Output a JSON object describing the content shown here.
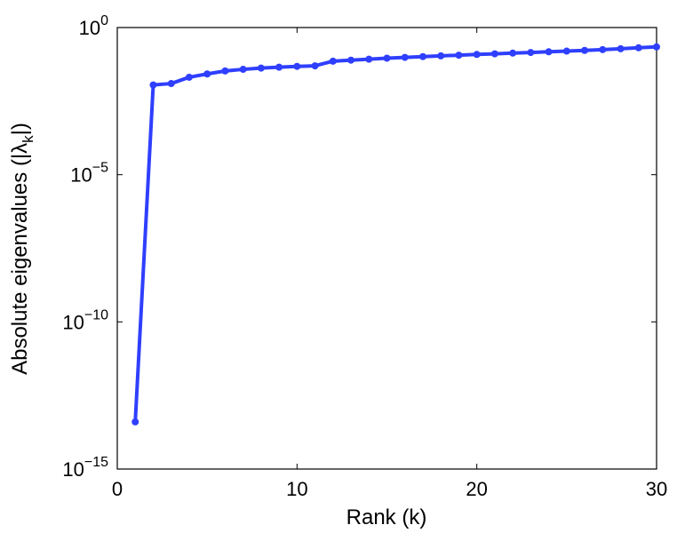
{
  "chart_data": {
    "type": "line",
    "xlabel": "Rank (k)",
    "ylabel_main": "Absolute eigenvalues (|λ",
    "ylabel_sub": "k",
    "ylabel_end": "|)",
    "xlim": [
      0,
      30
    ],
    "ylim_log10": [
      -15,
      0
    ],
    "yscale": "log",
    "grid": false,
    "x_ticks": [
      {
        "value": 0,
        "label": "0"
      },
      {
        "value": 10,
        "label": "10"
      },
      {
        "value": 20,
        "label": "20"
      },
      {
        "value": 30,
        "label": "30"
      }
    ],
    "y_ticks": [
      {
        "exp": 0,
        "base": "10",
        "sup": "0"
      },
      {
        "exp": -5,
        "base": "10",
        "sup": "−5"
      },
      {
        "exp": -10,
        "base": "10",
        "sup": "−10"
      },
      {
        "exp": -15,
        "base": "10",
        "sup": "−15"
      }
    ],
    "series": [
      {
        "color": "#2f3fff",
        "x": [
          1,
          2,
          3,
          4,
          5,
          6,
          7,
          8,
          9,
          10,
          11,
          12,
          13,
          14,
          15,
          16,
          17,
          18,
          19,
          20,
          21,
          22,
          23,
          24,
          25,
          26,
          27,
          28,
          29,
          30
        ],
        "y": [
          4e-14,
          0.0112,
          0.0125,
          0.0205,
          0.0265,
          0.0335,
          0.038,
          0.042,
          0.045,
          0.048,
          0.05,
          0.072,
          0.078,
          0.084,
          0.091,
          0.097,
          0.103,
          0.109,
          0.115,
          0.122,
          0.128,
          0.135,
          0.142,
          0.15,
          0.158,
          0.167,
          0.178,
          0.19,
          0.205,
          0.22
        ]
      }
    ]
  }
}
